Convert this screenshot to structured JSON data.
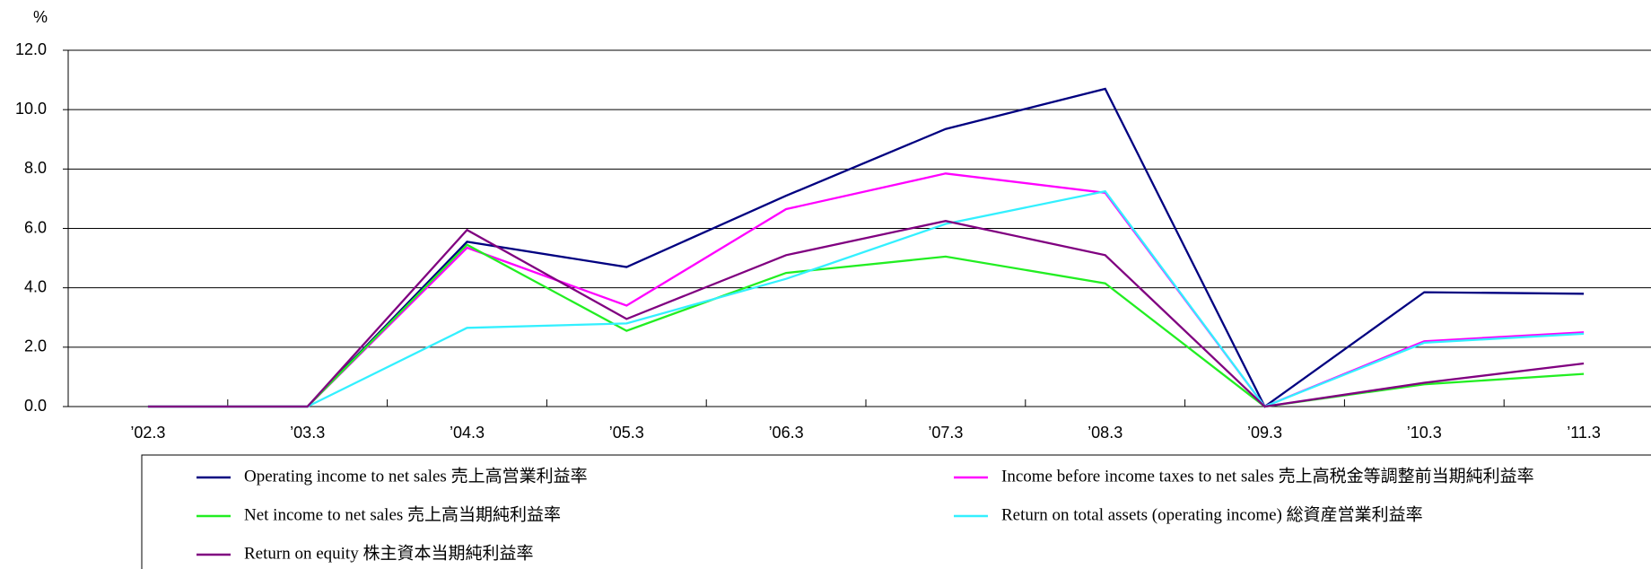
{
  "chart_data": {
    "type": "line",
    "y_unit": "%",
    "categories": [
      "’02.3",
      "’03.3",
      "’04.3",
      "’05.3",
      "’06.3",
      "’07.3",
      "’08.3",
      "’09.3",
      "’10.3",
      "’11.3"
    ],
    "series": [
      {
        "name": "Operating income to net sales 売上高営業利益率",
        "color": "#000080",
        "values": [
          0,
          0,
          5.55,
          4.7,
          7.1,
          9.35,
          10.7,
          0,
          3.85,
          3.8
        ]
      },
      {
        "name": "Income before income taxes to net sales 売上高税金等調整前当期純利益率",
        "color": "#ff00ff",
        "values": [
          0,
          0,
          5.35,
          3.4,
          6.65,
          7.85,
          7.2,
          0,
          2.2,
          2.5
        ]
      },
      {
        "name": "Net income to net sales 売上高当期純利益率",
        "color": "#22ee22",
        "values": [
          0,
          0,
          5.45,
          2.55,
          4.5,
          5.05,
          4.15,
          0,
          0.75,
          1.1
        ]
      },
      {
        "name": "Return on total assets (operating income) 総資産営業利益率",
        "color": "#33f0ff",
        "values": [
          0,
          0,
          2.65,
          2.8,
          4.3,
          6.15,
          7.25,
          0,
          2.15,
          2.45
        ]
      },
      {
        "name": "Return on equity 株主資本当期純利益率",
        "color": "#800080",
        "values": [
          0,
          0,
          5.95,
          2.95,
          5.1,
          6.25,
          5.1,
          0,
          0.8,
          1.45
        ]
      }
    ],
    "ylim": [
      0,
      12
    ],
    "yticks": [
      {
        "value": 0,
        "label": "0.0"
      },
      {
        "value": 2,
        "label": "2.0"
      },
      {
        "value": 4,
        "label": "4.0"
      },
      {
        "value": 6,
        "label": "6.0"
      },
      {
        "value": 8,
        "label": "8.0"
      },
      {
        "value": 10,
        "label": "10.0"
      },
      {
        "value": 12,
        "label": "12.0"
      }
    ],
    "grid": true
  }
}
